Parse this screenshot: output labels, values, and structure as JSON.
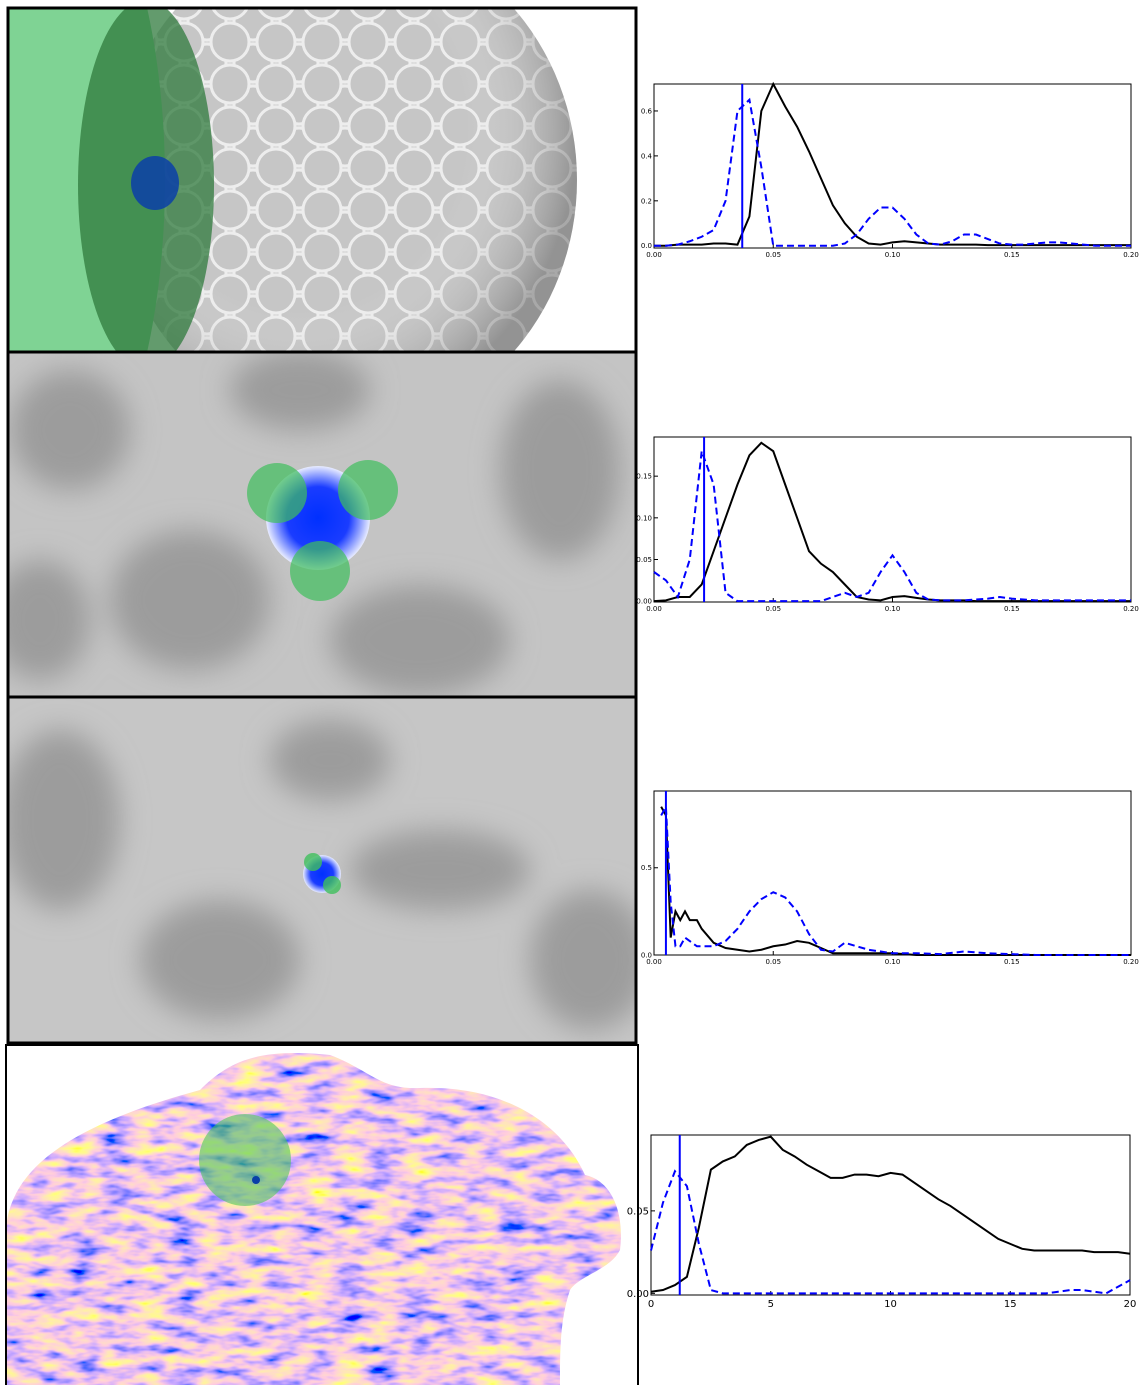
{
  "chart_data": [
    {
      "type": "line",
      "x": [
        0,
        0.005,
        0.01,
        0.015,
        0.02,
        0.025,
        0.03,
        0.035,
        0.04,
        0.045,
        0.05,
        0.055,
        0.06,
        0.065,
        0.07,
        0.075,
        0.08,
        0.085,
        0.09,
        0.095,
        0.1,
        0.105,
        0.11,
        0.115,
        0.12,
        0.125,
        0.13,
        0.135,
        0.14,
        0.145,
        0.15,
        0.155,
        0.16,
        0.165,
        0.17,
        0.175,
        0.18,
        0.185,
        0.19,
        0.195,
        0.2
      ],
      "series": [
        {
          "color": "#000000",
          "style": "solid",
          "values": [
            0,
            0,
            0.005,
            0.005,
            0.005,
            0.01,
            0.01,
            0.005,
            0.13,
            0.6,
            0.72,
            0.62,
            0.53,
            0.42,
            0.3,
            0.18,
            0.1,
            0.04,
            0.01,
            0.005,
            0.015,
            0.02,
            0.015,
            0.01,
            0.005,
            0.005,
            0.005,
            0.005,
            0.003,
            0.003,
            0.003,
            0.003,
            0.003,
            0.003,
            0.003,
            0.003,
            0.003,
            0.003,
            0.003,
            0.003,
            0.003
          ]
        },
        {
          "color": "#0000ff",
          "style": "dashed",
          "values": [
            0,
            0,
            0.005,
            0.02,
            0.04,
            0.07,
            0.2,
            0.6,
            0.65,
            0.35,
            0,
            0,
            0,
            0,
            0,
            0,
            0.01,
            0.05,
            0.12,
            0.17,
            0.17,
            0.12,
            0.05,
            0.01,
            0.005,
            0.02,
            0.05,
            0.05,
            0.03,
            0.01,
            0.005,
            0.005,
            0.01,
            0.015,
            0.015,
            0.01,
            0.005,
            0,
            0,
            0,
            0
          ]
        }
      ],
      "vline": 0.037,
      "vline_color": "#0000ff",
      "xlim": [
        0,
        0.2
      ],
      "ylim": [
        -0.01,
        0.72
      ],
      "xticks": [
        {
          "value": 0,
          "label": "0.00"
        },
        {
          "value": 0.05,
          "label": "0.05"
        },
        {
          "value": 0.1,
          "label": "0.10"
        },
        {
          "value": 0.15,
          "label": "0.15"
        },
        {
          "value": 0.2,
          "label": "0.20"
        }
      ],
      "yticks": [
        {
          "value": 0,
          "label": "0.0"
        },
        {
          "value": 0.2,
          "label": "0.2"
        },
        {
          "value": 0.4,
          "label": "0.4"
        },
        {
          "value": 0.6,
          "label": "0.6"
        }
      ]
    },
    {
      "type": "line",
      "x": [
        0,
        0.005,
        0.01,
        0.015,
        0.02,
        0.025,
        0.03,
        0.035,
        0.04,
        0.045,
        0.05,
        0.055,
        0.06,
        0.065,
        0.07,
        0.075,
        0.08,
        0.085,
        0.09,
        0.095,
        0.1,
        0.105,
        0.11,
        0.115,
        0.12,
        0.125,
        0.13,
        0.135,
        0.14,
        0.145,
        0.15,
        0.155,
        0.16,
        0.165,
        0.17,
        0.175,
        0.18,
        0.185,
        0.19,
        0.195,
        0.2
      ],
      "series": [
        {
          "color": "#000000",
          "style": "solid",
          "values": [
            0,
            0.001,
            0.005,
            0.005,
            0.02,
            0.06,
            0.1,
            0.14,
            0.175,
            0.19,
            0.18,
            0.14,
            0.1,
            0.06,
            0.045,
            0.035,
            0.02,
            0.005,
            0.002,
            0.001,
            0.005,
            0.006,
            0.004,
            0.002,
            0.001,
            0.001,
            0.001,
            0,
            0,
            0,
            0,
            0,
            0,
            0,
            0,
            0,
            0,
            0,
            0,
            0,
            0
          ]
        },
        {
          "color": "#0000ff",
          "style": "dashed",
          "values": [
            0.035,
            0.025,
            0.005,
            0.05,
            0.18,
            0.14,
            0.01,
            0,
            0,
            0,
            0,
            0,
            0,
            0,
            0,
            0.005,
            0.01,
            0.005,
            0.01,
            0.035,
            0.055,
            0.035,
            0.01,
            0.002,
            0.001,
            0.001,
            0.001,
            0.002,
            0.003,
            0.005,
            0.003,
            0.002,
            0.001,
            0.001,
            0.001,
            0.001,
            0.001,
            0.001,
            0.001,
            0.001,
            0.001
          ]
        }
      ],
      "vline": 0.021,
      "vline_color": "#0000ff",
      "xlim": [
        0,
        0.2
      ],
      "ylim": [
        -0.001,
        0.197
      ],
      "xticks": [
        {
          "value": 0,
          "label": "0.00"
        },
        {
          "value": 0.05,
          "label": "0.05"
        },
        {
          "value": 0.1,
          "label": "0.10"
        },
        {
          "value": 0.15,
          "label": "0.15"
        },
        {
          "value": 0.2,
          "label": "0.20"
        }
      ],
      "yticks": [
        {
          "value": 0,
          "label": "0.00"
        },
        {
          "value": 0.05,
          "label": "0.05"
        },
        {
          "value": 0.1,
          "label": "0.10"
        },
        {
          "value": 0.15,
          "label": "0.15"
        }
      ]
    },
    {
      "type": "line",
      "x": [
        0.003,
        0.005,
        0.007,
        0.009,
        0.011,
        0.013,
        0.015,
        0.018,
        0.02,
        0.025,
        0.03,
        0.035,
        0.04,
        0.045,
        0.05,
        0.055,
        0.06,
        0.065,
        0.07,
        0.075,
        0.08,
        0.09,
        0.1,
        0.11,
        0.12,
        0.13,
        0.14,
        0.15,
        0.16,
        0.17,
        0.18,
        0.19,
        0.2
      ],
      "series": [
        {
          "color": "#000000",
          "style": "solid",
          "values": [
            0.85,
            0.8,
            0.1,
            0.25,
            0.2,
            0.25,
            0.2,
            0.2,
            0.15,
            0.07,
            0.04,
            0.03,
            0.02,
            0.03,
            0.05,
            0.06,
            0.08,
            0.07,
            0.04,
            0.01,
            0.01,
            0.01,
            0.01,
            0,
            0,
            0,
            0,
            0,
            0,
            0,
            0,
            0,
            0
          ]
        },
        {
          "color": "#0000ff",
          "style": "dashed",
          "values": [
            0.8,
            0.85,
            0.3,
            0.05,
            0.05,
            0.1,
            0.08,
            0.05,
            0.05,
            0.05,
            0.08,
            0.15,
            0.25,
            0.32,
            0.36,
            0.33,
            0.25,
            0.12,
            0.03,
            0.02,
            0.07,
            0.03,
            0.01,
            0.01,
            0.005,
            0.02,
            0.01,
            0.005,
            0,
            0,
            0,
            0,
            0
          ]
        }
      ],
      "vline": 0.005,
      "vline_color": "#0000ff",
      "xlim": [
        0,
        0.2
      ],
      "ylim": [
        0,
        0.94
      ],
      "xticks": [
        {
          "value": 0,
          "label": "0.00"
        },
        {
          "value": 0.05,
          "label": "0.05"
        },
        {
          "value": 0.1,
          "label": "0.10"
        },
        {
          "value": 0.15,
          "label": "0.15"
        },
        {
          "value": 0.2,
          "label": "0.20"
        }
      ],
      "yticks": [
        {
          "value": 0,
          "label": "0.0"
        },
        {
          "value": 0.5,
          "label": "0.5"
        }
      ]
    },
    {
      "type": "line",
      "x": [
        0,
        0.5,
        1,
        1.5,
        2,
        2.5,
        3,
        3.5,
        4,
        4.5,
        5,
        5.5,
        6,
        6.5,
        7,
        7.5,
        8,
        8.5,
        9,
        9.5,
        10,
        10.5,
        11,
        11.5,
        12,
        12.5,
        13,
        13.5,
        14,
        14.5,
        15,
        15.5,
        16,
        16.5,
        17,
        17.5,
        18,
        18.5,
        19,
        19.5,
        20
      ],
      "series": [
        {
          "color": "#000000",
          "style": "solid",
          "values": [
            0.001,
            0.002,
            0.005,
            0.01,
            0.04,
            0.075,
            0.08,
            0.083,
            0.09,
            0.093,
            0.095,
            0.087,
            0.083,
            0.078,
            0.074,
            0.07,
            0.07,
            0.072,
            0.072,
            0.071,
            0.073,
            0.072,
            0.067,
            0.062,
            0.057,
            0.053,
            0.048,
            0.043,
            0.038,
            0.033,
            0.03,
            0.027,
            0.026,
            0.026,
            0.026,
            0.026,
            0.026,
            0.025,
            0.025,
            0.025,
            0.024
          ]
        },
        {
          "color": "#0000ff",
          "style": "dashed",
          "values": [
            0.026,
            0.055,
            0.074,
            0.065,
            0.03,
            0.002,
            0,
            0,
            0,
            0,
            0,
            0,
            0,
            0,
            0,
            0,
            0,
            0,
            0,
            0,
            0,
            0,
            0,
            0,
            0,
            0,
            0,
            0,
            0,
            0,
            0,
            0,
            0,
            0,
            0.001,
            0.002,
            0.002,
            0.001,
            0,
            0.004,
            0.008
          ]
        }
      ],
      "vline": 1.2,
      "vline_color": "#0000ff",
      "xlim": [
        0,
        20
      ],
      "ylim": [
        -0.001,
        0.096
      ],
      "xticks": [
        0,
        5,
        10,
        15,
        20
      ],
      "yticks": [
        {
          "value": 0,
          "label": "0.00"
        },
        {
          "value": 0.05,
          "label": "0.05"
        }
      ]
    }
  ]
}
